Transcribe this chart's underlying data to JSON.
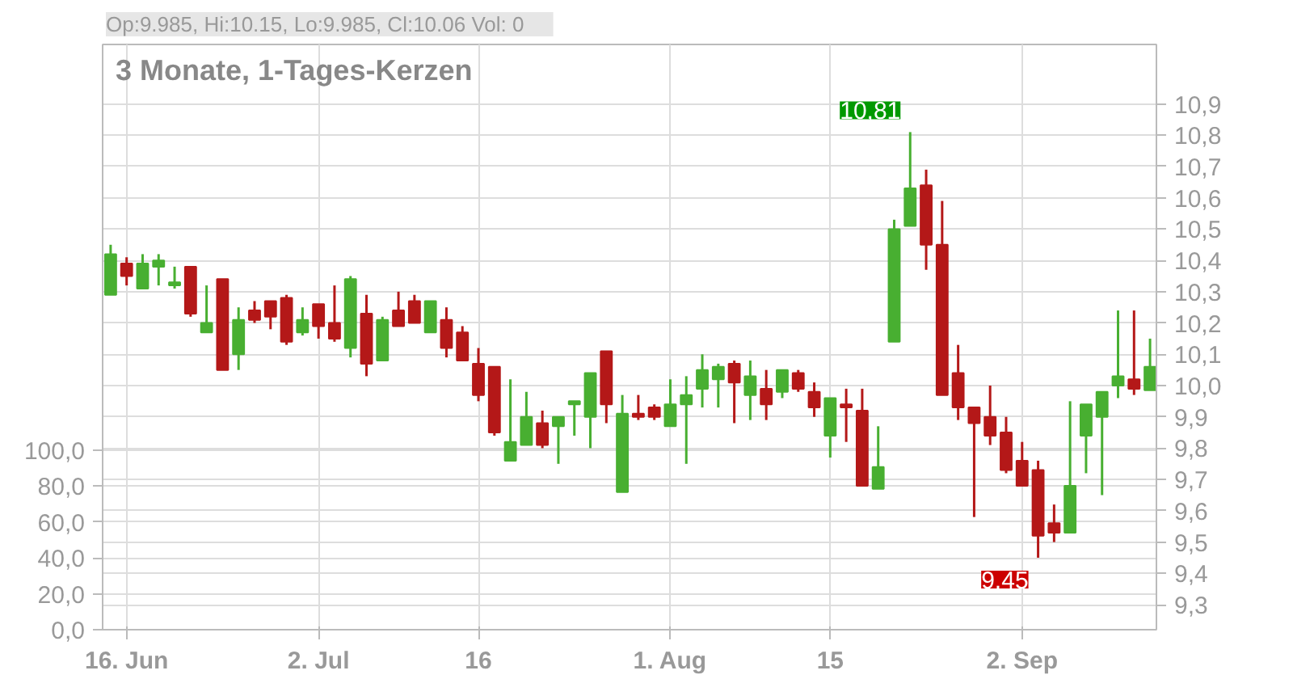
{
  "chart_data": {
    "type": "candlestick",
    "title": "3 Monate, 1-Tages-Kerzen",
    "annotations": [
      "Op:9.985, Hi:10.15, Lo:9.985, Cl:10.06",
      "Vol: 0",
      "10,81",
      "9,45"
    ],
    "categories": [
      null,
      "16. Jun",
      null,
      null,
      null,
      null,
      null,
      null,
      null,
      null,
      null,
      null,
      null,
      "2. Jul",
      null,
      null,
      null,
      null,
      null,
      null,
      null,
      null,
      null,
      "16",
      null,
      null,
      null,
      null,
      null,
      null,
      null,
      null,
      null,
      null,
      null,
      "1. Aug",
      null,
      null,
      null,
      null,
      null,
      null,
      null,
      null,
      null,
      "15",
      null,
      null,
      null,
      null,
      null,
      null,
      null,
      null,
      null,
      null,
      null,
      "2. Sep",
      null,
      null,
      null,
      null,
      null,
      null,
      null,
      null
    ],
    "ohlc": [
      [
        10.29,
        10.45,
        10.29,
        10.42
      ],
      [
        10.39,
        10.41,
        10.32,
        10.35
      ],
      [
        10.31,
        10.42,
        10.31,
        10.39
      ],
      [
        10.38,
        10.42,
        10.32,
        10.4
      ],
      [
        10.32,
        10.38,
        10.31,
        10.33
      ],
      [
        10.38,
        10.38,
        10.22,
        10.23
      ],
      [
        10.17,
        10.32,
        10.17,
        10.2
      ],
      [
        10.34,
        10.34,
        10.05,
        10.05
      ],
      [
        10.1,
        10.25,
        10.05,
        10.21
      ],
      [
        10.24,
        10.27,
        10.2,
        10.21
      ],
      [
        10.27,
        10.27,
        10.18,
        10.22
      ],
      [
        10.28,
        10.29,
        10.13,
        10.14
      ],
      [
        10.17,
        10.25,
        10.16,
        10.21
      ],
      [
        10.26,
        10.26,
        10.15,
        10.19
      ],
      [
        10.2,
        10.32,
        10.14,
        10.15
      ],
      [
        10.12,
        10.35,
        10.09,
        10.34
      ],
      [
        10.23,
        10.29,
        10.03,
        10.07
      ],
      [
        10.08,
        10.22,
        10.08,
        10.21
      ],
      [
        10.24,
        10.3,
        10.19,
        10.19
      ],
      [
        10.27,
        10.29,
        10.2,
        10.2
      ],
      [
        10.17,
        10.27,
        10.17,
        10.27
      ],
      [
        10.21,
        10.25,
        10.09,
        10.12
      ],
      [
        10.17,
        10.19,
        10.08,
        10.08
      ],
      [
        10.07,
        10.12,
        9.95,
        9.97
      ],
      [
        10.06,
        10.06,
        9.84,
        9.85
      ],
      [
        9.76,
        10.02,
        9.76,
        9.82
      ],
      [
        9.81,
        9.98,
        9.81,
        9.9
      ],
      [
        9.88,
        9.92,
        9.8,
        9.81
      ],
      [
        9.87,
        9.9,
        9.75,
        9.9
      ],
      [
        9.94,
        9.95,
        9.84,
        9.95
      ],
      [
        9.9,
        10.04,
        9.8,
        10.04
      ],
      [
        10.11,
        10.11,
        9.88,
        9.94
      ],
      [
        9.66,
        9.97,
        9.66,
        9.91
      ],
      [
        9.91,
        9.97,
        9.89,
        9.9
      ],
      [
        9.93,
        9.94,
        9.89,
        9.9
      ],
      [
        9.87,
        10.02,
        9.87,
        9.94
      ],
      [
        9.94,
        10.03,
        9.75,
        9.97
      ],
      [
        9.99,
        10.1,
        9.93,
        10.05
      ],
      [
        10.02,
        10.07,
        9.93,
        10.06
      ],
      [
        10.07,
        10.08,
        9.88,
        10.01
      ],
      [
        9.97,
        10.08,
        9.89,
        10.03
      ],
      [
        9.99,
        10.05,
        9.89,
        9.94
      ],
      [
        9.98,
        10.05,
        9.96,
        10.05
      ],
      [
        10.04,
        10.05,
        9.98,
        9.99
      ],
      [
        9.98,
        10.01,
        9.9,
        9.93
      ],
      [
        9.84,
        9.96,
        9.77,
        9.96
      ],
      [
        9.94,
        9.99,
        9.82,
        9.93
      ],
      [
        9.92,
        9.99,
        9.68,
        9.68
      ],
      [
        9.67,
        9.87,
        9.67,
        9.74
      ],
      [
        10.14,
        10.53,
        10.14,
        10.5
      ],
      [
        10.51,
        10.81,
        10.51,
        10.63
      ],
      [
        10.64,
        10.69,
        10.37,
        10.45
      ],
      [
        10.45,
        10.59,
        9.97,
        9.97
      ],
      [
        10.04,
        10.13,
        9.89,
        9.93
      ],
      [
        9.93,
        9.93,
        9.58,
        9.88
      ],
      [
        9.9,
        10.0,
        9.81,
        9.84
      ],
      [
        9.85,
        9.9,
        9.72,
        9.73
      ],
      [
        9.76,
        9.82,
        9.68,
        9.68
      ],
      [
        9.73,
        9.76,
        9.45,
        9.52
      ],
      [
        9.56,
        9.62,
        9.5,
        9.53
      ],
      [
        9.53,
        9.95,
        9.53,
        9.68
      ],
      [
        9.84,
        9.94,
        9.72,
        9.94
      ],
      [
        9.9,
        9.98,
        9.65,
        9.98
      ],
      [
        10.0,
        10.24,
        9.96,
        10.03
      ],
      [
        10.02,
        10.24,
        9.97,
        9.99
      ],
      [
        9.985,
        10.15,
        9.985,
        10.06
      ]
    ],
    "colors": [
      "#48af31",
      "#b41818",
      "#48af31",
      "#48af31",
      "#48af31",
      "#b41818",
      "#48af31",
      "#b41818",
      "#48af31",
      "#b41818",
      "#b41818",
      "#b41818",
      "#48af31",
      "#b41818",
      "#b41818",
      "#48af31",
      "#b41818",
      "#48af31",
      "#b41818",
      "#b41818",
      "#48af31",
      "#b41818",
      "#b41818",
      "#b41818",
      "#b41818",
      "#48af31",
      "#48af31",
      "#b41818",
      "#48af31",
      "#48af31",
      "#48af31",
      "#b41818",
      "#48af31",
      "#b41818",
      "#b41818",
      "#48af31",
      "#48af31",
      "#48af31",
      "#48af31",
      "#b41818",
      "#48af31",
      "#b41818",
      "#48af31",
      "#b41818",
      "#b41818",
      "#48af31",
      "#b41818",
      "#b41818",
      "#48af31",
      "#48af31",
      "#48af31",
      "#b41818",
      "#b41818",
      "#b41818",
      "#b41818",
      "#b41818",
      "#b41818",
      "#b41818",
      "#b41818",
      "#b41818",
      "#48af31",
      "#48af31",
      "#48af31",
      "#48af31",
      "#b41818",
      "#48af31"
    ],
    "y2lim": [
      0,
      326
    ],
    "y2ticks": [
      {
        "value": 0,
        "label": "0,0"
      },
      {
        "value": 20,
        "label": "20,0"
      },
      {
        "value": 40,
        "label": "40,0"
      },
      {
        "value": 60,
        "label": "60,0"
      },
      {
        "value": 80,
        "label": "80,0"
      },
      {
        "value": 100,
        "label": "100,0"
      }
    ],
    "ylim": [
      9.22,
      11.09
    ],
    "yticks": [
      {
        "value": 9.3,
        "label": "9,3"
      },
      {
        "value": 9.4,
        "label": "9,4"
      },
      {
        "value": 9.5,
        "label": "9,5"
      },
      {
        "value": 9.6,
        "label": "9,6"
      },
      {
        "value": 9.7,
        "label": "9,7"
      },
      {
        "value": 9.8,
        "label": "9,8"
      },
      {
        "value": 9.9,
        "label": "9,9"
      },
      {
        "value": 10.0,
        "label": "10,0"
      },
      {
        "value": 10.1,
        "label": "10,1"
      },
      {
        "value": 10.2,
        "label": "10,2"
      },
      {
        "value": 10.3,
        "label": "10,3"
      },
      {
        "value": 10.4,
        "label": "10,4"
      },
      {
        "value": 10.5,
        "label": "10,5"
      },
      {
        "value": 10.6,
        "label": "10,6"
      },
      {
        "value": 10.7,
        "label": "10,7"
      },
      {
        "value": 10.8,
        "label": "10,8"
      },
      {
        "value": 10.9,
        "label": "10,9"
      }
    ],
    "grid": true
  }
}
